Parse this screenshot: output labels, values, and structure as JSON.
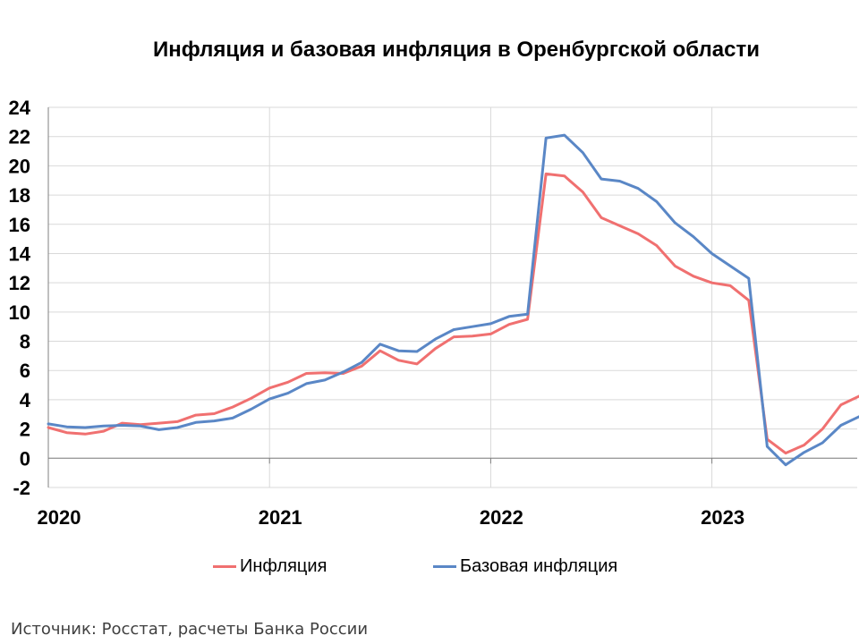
{
  "chart_data": {
    "type": "line",
    "title": "Инфляция и базовая инфляция в Оренбургской области",
    "x_tick_labels": [
      "2020",
      "2021",
      "2022",
      "2023"
    ],
    "ylim": [
      -2,
      24
    ],
    "y_ticks": [
      -2,
      0,
      2,
      4,
      6,
      8,
      10,
      12,
      14,
      16,
      18,
      20,
      22,
      24
    ],
    "x_start": "2020-01",
    "grid": true,
    "legend_position": "bottom",
    "series": [
      {
        "name": "Инфляция",
        "color": "#f07070",
        "values": [
          2.1,
          1.75,
          1.65,
          1.85,
          2.4,
          2.3,
          2.4,
          2.5,
          2.95,
          3.05,
          3.5,
          4.1,
          4.8,
          5.2,
          5.8,
          5.85,
          5.8,
          6.3,
          7.35,
          6.7,
          6.45,
          7.5,
          8.3,
          8.35,
          8.5,
          9.15,
          9.5,
          19.45,
          19.3,
          18.2,
          16.45,
          15.9,
          15.35,
          14.55,
          13.15,
          12.45,
          12.0,
          11.8,
          10.8,
          1.3,
          0.35,
          0.9,
          2.0,
          3.65,
          4.25
        ]
      },
      {
        "name": "Базовая инфляция",
        "color": "#5a87c6",
        "values": [
          2.35,
          2.15,
          2.1,
          2.2,
          2.25,
          2.2,
          1.95,
          2.1,
          2.45,
          2.55,
          2.75,
          3.35,
          4.05,
          4.45,
          5.1,
          5.35,
          5.9,
          6.55,
          7.8,
          7.35,
          7.3,
          8.15,
          8.8,
          9.0,
          9.2,
          9.7,
          9.85,
          21.9,
          22.1,
          20.9,
          19.1,
          18.95,
          18.45,
          17.55,
          16.1,
          15.15,
          14.0,
          13.15,
          12.3,
          0.8,
          -0.45,
          0.4,
          1.05,
          2.25,
          2.85
        ]
      }
    ]
  },
  "footer": {
    "source": "Источник: Росстат, расчеты Банка России"
  }
}
